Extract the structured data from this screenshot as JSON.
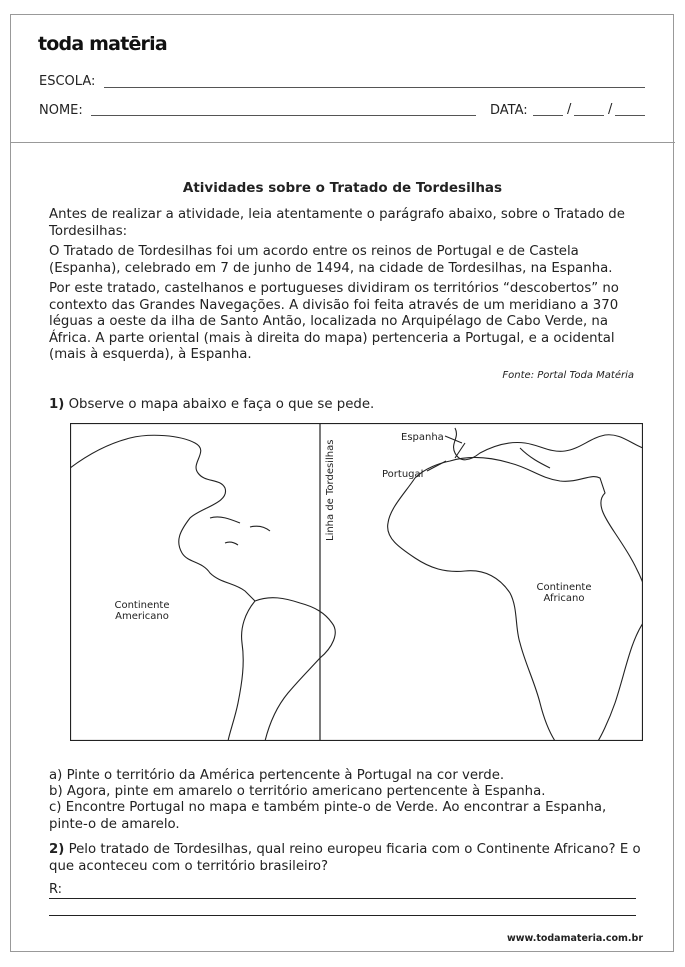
{
  "header": {
    "logo": "toda matēria",
    "school_label": "ESCOLA:",
    "name_label": "NOME:",
    "date_label": "DATA:",
    "date_sep": "/"
  },
  "title": "Atividades sobre o Tratado de Tordesilhas",
  "paragraphs": [
    "Antes de realizar a atividade, leia atentamente o parágrafo abaixo, sobre o Tratado de Tordesilhas:",
    "O Tratado de Tordesilhas foi um acordo entre os reinos de Portugal e de Castela (Espanha), celebrado em 7 de junho de 1494, na cidade de Tordesilhas, na Espanha.",
    "Por este tratado, castelhanos e portugueses dividiram os territórios “descobertos” no contexto das Grandes Navegações. A divisão foi feita através de um meridiano a 370 léguas a oeste da ilha de Santo Antão, localizada no Arquipélago de Cabo Verde, na África. A parte oriental (mais à direita do mapa) pertenceria a Portugal, e a ocidental (mais à esquerda), à Espanha."
  ],
  "source": "Fonte: Portal Toda Matéria",
  "q1": {
    "number": "1)",
    "text": " Observe o mapa abaixo e faça o que se pede."
  },
  "map": {
    "line_label": "Linha de Tordesilhas",
    "espanha": "Espanha",
    "portugal": "Portugal",
    "america_1": "Continente",
    "america_2": "Americano",
    "africa_1": "Continente",
    "africa_2": "Africano"
  },
  "tasks": [
    "a) Pinte o território da América pertencente à Portugal na cor verde.",
    "b) Agora, pinte em amarelo o território americano pertencente à Espanha.",
    "c) Encontre Portugal no mapa e também pinte-o de Verde. Ao encontrar a Espanha, pinte-o de amarelo."
  ],
  "q2": {
    "number": "2)",
    "text": " Pelo tratado de Tordesilhas, qual reino europeu ficaria com o Continente Africano? E o que aconteceu com o território brasileiro?"
  },
  "answer_label": "R:",
  "footer_url": "www.todamateria.com.br"
}
